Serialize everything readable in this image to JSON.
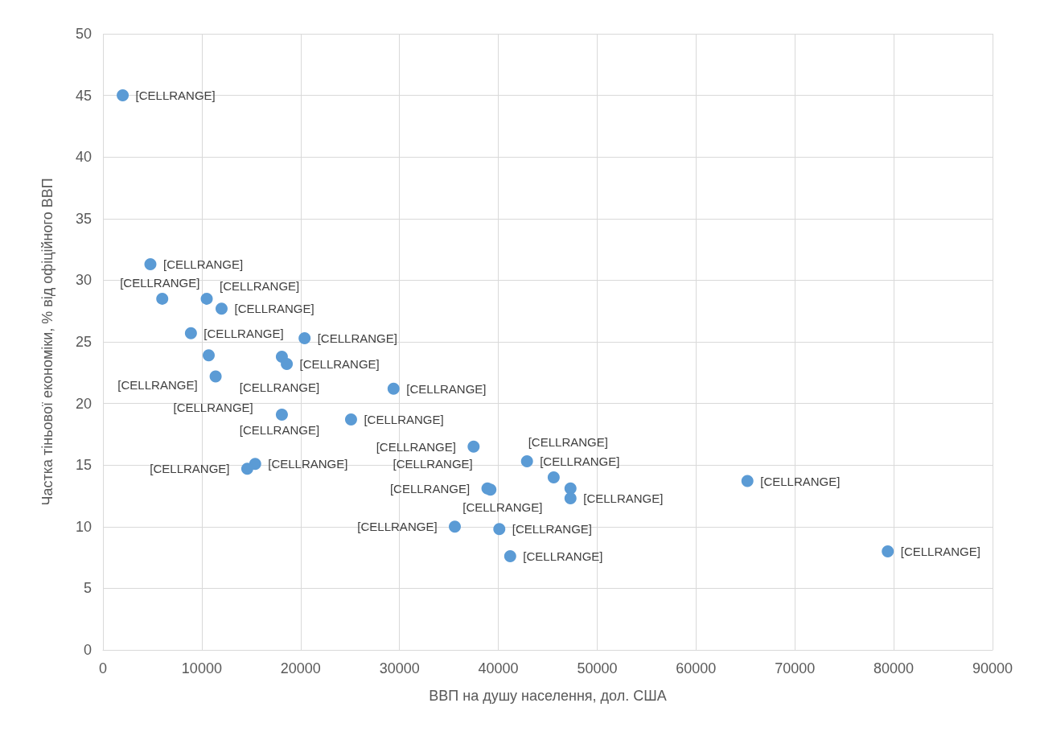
{
  "chart_data": {
    "type": "scatter",
    "xlabel": "ВВП на душу населення, дол. США",
    "ylabel": "Частка тіньової економіки, % від офіційного ВВП",
    "x": [
      2000,
      4800,
      6000,
      10500,
      12000,
      8900,
      20400,
      10700,
      18100,
      18600,
      11400,
      29400,
      18100,
      25100,
      37500,
      15400,
      14600,
      42900,
      45600,
      65200,
      47300,
      38900,
      39200,
      47300,
      35600,
      40100,
      41200,
      79400
    ],
    "values": [
      45,
      31.3,
      28.5,
      28.5,
      27.7,
      25.7,
      25.3,
      23.9,
      23.8,
      23.2,
      22.2,
      21.2,
      19.1,
      18.7,
      16.5,
      15.1,
      14.7,
      15.3,
      14,
      13.7,
      13.1,
      13.1,
      13,
      12.3,
      10,
      9.8,
      7.6,
      8
    ],
    "value_labels": [
      "[CELLRANGE]",
      "[CELLRANGE]",
      "[CELLRANGE]",
      "[CELLRANGE]",
      "[CELLRANGE]",
      "[CELLRANGE]",
      "[CELLRANGE]",
      "[CELLRANGE]",
      "[CELLRANGE]",
      "[CELLRANGE]",
      "[CELLRANGE]",
      "[CELLRANGE]",
      "[CELLRANGE]",
      "[CELLRANGE]",
      "[CELLRANGE]",
      "[CELLRANGE]",
      "[CELLRANGE]",
      "[CELLRANGE]",
      "[CELLRANGE]",
      "[CELLRANGE]",
      "[CELLRANGE]",
      "[CELLRANGE]",
      "[CELLRANGE]",
      "[CELLRANGE]",
      "[CELLRANGE]",
      "[CELLRANGE]",
      "[CELLRANGE]",
      "[CELLRANGE]"
    ],
    "color": "#5b9bd5",
    "marker": "circle",
    "xlim": [
      0,
      90000
    ],
    "xticks": [
      0,
      10000,
      20000,
      30000,
      40000,
      50000,
      60000,
      70000,
      80000,
      90000
    ],
    "ylim": [
      0,
      50
    ],
    "yticks": [
      0,
      5,
      10,
      15,
      20,
      25,
      30,
      35,
      40,
      45,
      50
    ],
    "grid": true
  }
}
